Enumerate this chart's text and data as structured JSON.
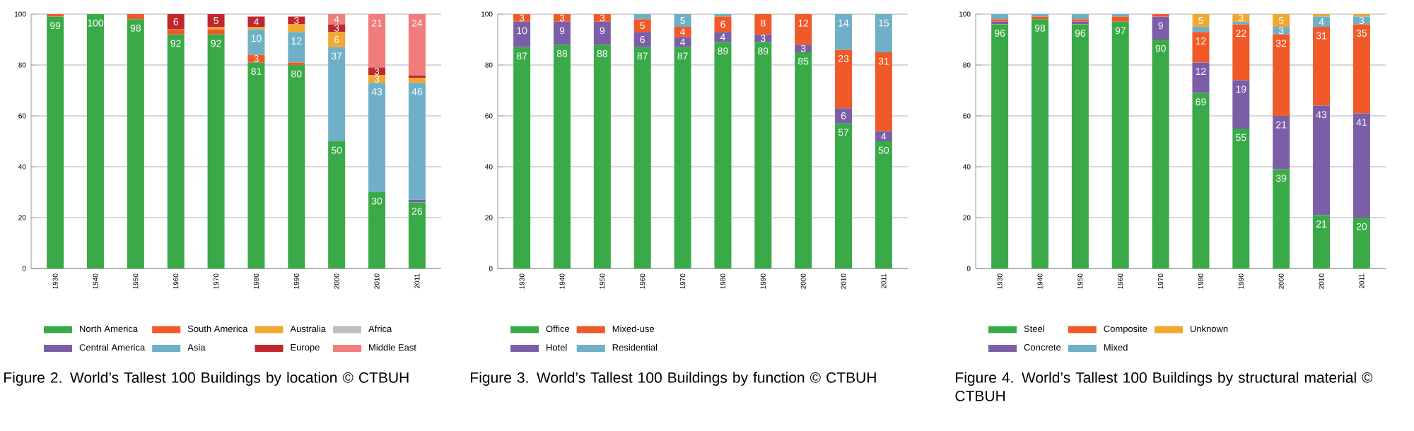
{
  "chart_data": [
    {
      "type": "bar",
      "stacked": true,
      "title": "Figure 2. World’s Tallest 100 Buildings by location © CTBUH",
      "categories": [
        "1930",
        "1940",
        "1950",
        "1960",
        "1970",
        "1980",
        "1990",
        "2000",
        "2010",
        "2011"
      ],
      "ylim": [
        0,
        100
      ],
      "yticks": [
        0,
        20,
        40,
        60,
        80,
        100
      ],
      "grid": "y",
      "legend": "bottom",
      "series": [
        {
          "name": "North America",
          "color": "#3aaa48",
          "values": [
            99,
            100,
            98,
            92,
            92,
            81,
            80,
            50,
            30,
            26
          ],
          "value_labels": [
            "99",
            "100",
            "98",
            "92",
            "92",
            "81",
            "80",
            "50",
            "30",
            "26"
          ]
        },
        {
          "name": "Central America",
          "color": "#7b5ea7",
          "values": [
            null,
            null,
            null,
            null,
            null,
            null,
            null,
            null,
            null,
            1
          ],
          "value_labels": [
            null,
            null,
            null,
            null,
            null,
            null,
            null,
            null,
            null,
            null
          ]
        },
        {
          "name": "South America",
          "color": "#f05a28",
          "values": [
            1,
            null,
            2,
            2,
            2,
            3,
            1,
            null,
            null,
            null
          ],
          "value_labels": [
            null,
            null,
            null,
            null,
            null,
            "3",
            null,
            null,
            null,
            null
          ]
        },
        {
          "name": "Asia",
          "color": "#6fb0c8",
          "values": [
            null,
            null,
            null,
            null,
            null,
            10,
            12,
            37,
            43,
            46
          ],
          "value_labels": [
            null,
            null,
            null,
            null,
            null,
            "10",
            "12",
            "37",
            "43",
            "46"
          ]
        },
        {
          "name": "Australia",
          "color": "#f0a830",
          "values": [
            null,
            null,
            null,
            null,
            1,
            1,
            3,
            6,
            3,
            2
          ],
          "value_labels": [
            null,
            null,
            null,
            null,
            null,
            null,
            null,
            "6",
            "3",
            null
          ]
        },
        {
          "name": "Europe",
          "color": "#c0272d",
          "values": [
            null,
            null,
            null,
            6,
            5,
            4,
            3,
            3,
            3,
            1
          ],
          "value_labels": [
            null,
            null,
            null,
            "6",
            "5",
            "4",
            "3",
            "3",
            "3",
            null
          ]
        },
        {
          "name": "Africa",
          "color": "#bdbdbd",
          "values": [
            null,
            null,
            null,
            null,
            null,
            null,
            null,
            null,
            null,
            null
          ],
          "value_labels": [
            null,
            null,
            null,
            null,
            null,
            null,
            null,
            null,
            null,
            null
          ]
        },
        {
          "name": "Middle East",
          "color": "#f07c7c",
          "values": [
            null,
            null,
            null,
            null,
            null,
            null,
            null,
            4,
            21,
            24
          ],
          "value_labels": [
            null,
            null,
            null,
            null,
            null,
            null,
            null,
            "4",
            "21",
            "24"
          ]
        }
      ]
    },
    {
      "type": "bar",
      "stacked": true,
      "title": "Figure 3. World’s Tallest 100 Buildings by function © CTBUH",
      "categories": [
        "1930",
        "1940",
        "1950",
        "1960",
        "1970",
        "1980",
        "1990",
        "2000",
        "2010",
        "2011"
      ],
      "ylim": [
        0,
        100
      ],
      "yticks": [
        0,
        20,
        40,
        60,
        80,
        100
      ],
      "grid": "y",
      "legend": "bottom",
      "series": [
        {
          "name": "Office",
          "color": "#3aaa48",
          "values": [
            87,
            88,
            88,
            87,
            87,
            89,
            89,
            85,
            57,
            50
          ],
          "value_labels": [
            "87",
            "88",
            "88",
            "87",
            "87",
            "89",
            "89",
            "85",
            "57",
            "50"
          ]
        },
        {
          "name": "Hotel",
          "color": "#7b5ea7",
          "values": [
            10,
            9,
            9,
            6,
            4,
            4,
            3,
            3,
            6,
            4
          ],
          "value_labels": [
            "10",
            "9",
            "9",
            "6",
            "4",
            "4",
            "3",
            "3",
            "6",
            "4"
          ]
        },
        {
          "name": "Mixed-use",
          "color": "#f05a28",
          "values": [
            3,
            3,
            3,
            5,
            4,
            6,
            8,
            12,
            23,
            31
          ],
          "value_labels": [
            "3",
            "3",
            "3",
            "5",
            "4",
            "6",
            "8",
            "12",
            "23",
            "31"
          ]
        },
        {
          "name": "Residential",
          "color": "#6fb0c8",
          "values": [
            null,
            null,
            null,
            2,
            5,
            1,
            null,
            null,
            14,
            15
          ],
          "value_labels": [
            null,
            null,
            null,
            null,
            "5",
            null,
            null,
            null,
            "14",
            "15"
          ]
        }
      ]
    },
    {
      "type": "bar",
      "stacked": true,
      "title": "Figure 4. World’s Tallest 100 Buildings by structural material © CTBUH",
      "categories": [
        "1930",
        "1940",
        "1950",
        "1960",
        "1970",
        "1980",
        "1990",
        "2000",
        "2010",
        "2011"
      ],
      "ylim": [
        0,
        100
      ],
      "yticks": [
        0,
        20,
        40,
        60,
        80,
        100
      ],
      "grid": "y",
      "legend": "bottom",
      "series": [
        {
          "name": "Steel",
          "color": "#3aaa48",
          "values": [
            96,
            98,
            96,
            97,
            90,
            69,
            55,
            39,
            21,
            20
          ],
          "value_labels": [
            "96",
            "98",
            "96",
            "97",
            "90",
            "69",
            "55",
            "39",
            "21",
            "20"
          ]
        },
        {
          "name": "Concrete",
          "color": "#7b5ea7",
          "values": [
            1,
            null,
            1,
            null,
            9,
            12,
            19,
            21,
            43,
            41
          ],
          "value_labels": [
            null,
            null,
            null,
            null,
            "9",
            "12",
            "19",
            "21",
            "43",
            "41"
          ]
        },
        {
          "name": "Composite",
          "color": "#f05a28",
          "values": [
            1,
            1,
            1,
            2,
            1,
            12,
            22,
            32,
            31,
            35
          ],
          "value_labels": [
            null,
            null,
            null,
            null,
            null,
            "12",
            "22",
            "32",
            "31",
            "35"
          ]
        },
        {
          "name": "Mixed",
          "color": "#6fb0c8",
          "values": [
            2,
            1,
            2,
            1,
            null,
            2,
            1,
            3,
            4,
            3
          ],
          "value_labels": [
            null,
            null,
            null,
            null,
            null,
            null,
            null,
            "3",
            "4",
            "3"
          ]
        },
        {
          "name": "Unknown",
          "color": "#f0a830",
          "values": [
            null,
            null,
            null,
            null,
            null,
            5,
            3,
            5,
            1,
            1
          ],
          "value_labels": [
            null,
            null,
            null,
            null,
            null,
            "5",
            "3",
            "5",
            null,
            null
          ]
        }
      ]
    }
  ]
}
